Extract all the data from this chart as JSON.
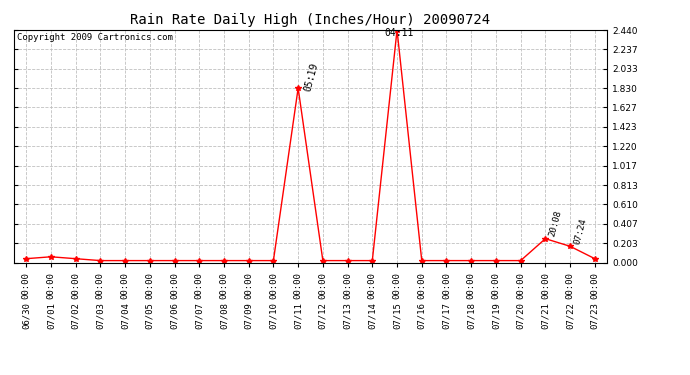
{
  "title": "Rain Rate Daily High (Inches/Hour) 20090724",
  "copyright": "Copyright 2009 Cartronics.com",
  "line_color": "#FF0000",
  "background_color": "#FFFFFF",
  "grid_color": "#C0C0C0",
  "ylim": [
    0.0,
    2.44
  ],
  "yticks": [
    0.0,
    0.203,
    0.407,
    0.61,
    0.813,
    1.017,
    1.22,
    1.423,
    1.627,
    1.83,
    2.033,
    2.237,
    2.44
  ],
  "x_dates": [
    "06/30",
    "07/01",
    "07/02",
    "07/03",
    "07/04",
    "07/05",
    "07/06",
    "07/07",
    "07/08",
    "07/09",
    "07/10",
    "07/11",
    "07/12",
    "07/13",
    "07/14",
    "07/15",
    "07/16",
    "07/17",
    "07/18",
    "07/19",
    "07/20",
    "07/21",
    "07/22",
    "07/23"
  ],
  "data_points": [
    [
      0,
      0.04
    ],
    [
      1,
      0.06
    ],
    [
      2,
      0.04
    ],
    [
      3,
      0.02
    ],
    [
      4,
      0.02
    ],
    [
      5,
      0.02
    ],
    [
      6,
      0.02
    ],
    [
      7,
      0.02
    ],
    [
      8,
      0.02
    ],
    [
      9,
      0.02
    ],
    [
      10,
      0.02
    ],
    [
      11,
      1.83
    ],
    [
      12,
      0.02
    ],
    [
      13,
      0.02
    ],
    [
      14,
      0.02
    ],
    [
      15,
      2.44
    ],
    [
      16,
      0.02
    ],
    [
      17,
      0.02
    ],
    [
      18,
      0.02
    ],
    [
      19,
      0.02
    ],
    [
      20,
      0.02
    ],
    [
      21,
      0.25
    ],
    [
      22,
      0.17
    ],
    [
      23,
      0.04
    ]
  ],
  "peak1_idx": 11,
  "peak1_label": "05:19",
  "peak2_idx": 15,
  "peak2_label": "04:11",
  "peak3_idx": 21,
  "peak3_label": "20:08",
  "peak4_idx": 22,
  "peak4_label": "07:24",
  "title_fontsize": 10,
  "tick_fontsize": 6.5,
  "copyright_fontsize": 6.5
}
